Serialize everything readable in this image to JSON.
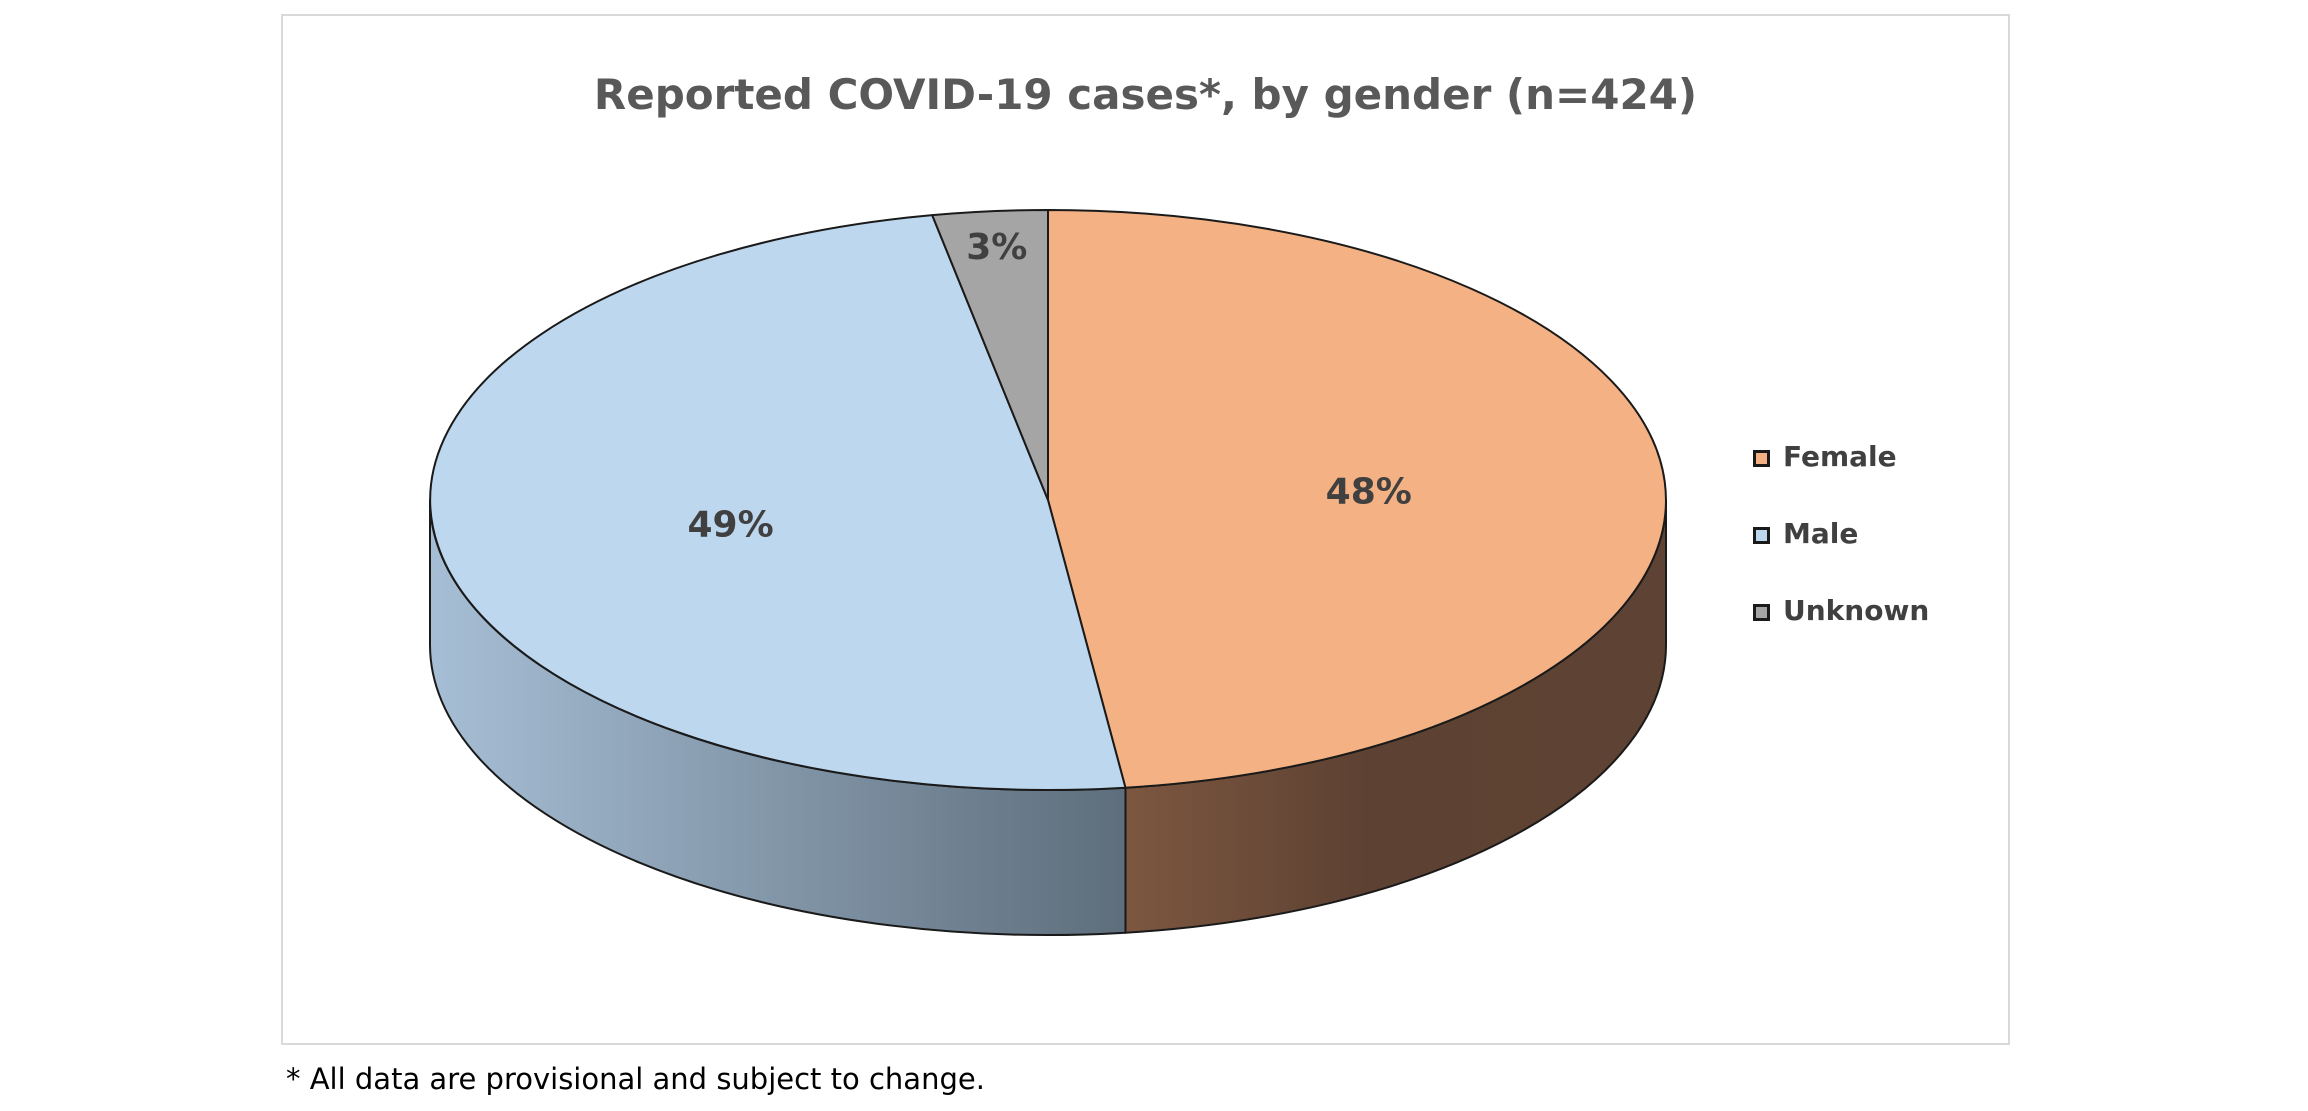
{
  "chart_data": {
    "type": "pie",
    "title": "Reported COVID-19 cases*, by gender (n=424)",
    "categories": [
      "Female",
      "Male",
      "Unknown"
    ],
    "values": [
      48,
      49,
      3
    ],
    "data_labels": [
      "48%",
      "49%",
      "3%"
    ],
    "colors": [
      "#f4b183",
      "#bdd7ee",
      "#a5a5a5"
    ],
    "side_colors": [
      "#6b4a36",
      "#7f93a8",
      "#7a7a7a"
    ],
    "legend_placement": "right",
    "style": "3d"
  },
  "footnote": "* All data are provisional and subject to change."
}
